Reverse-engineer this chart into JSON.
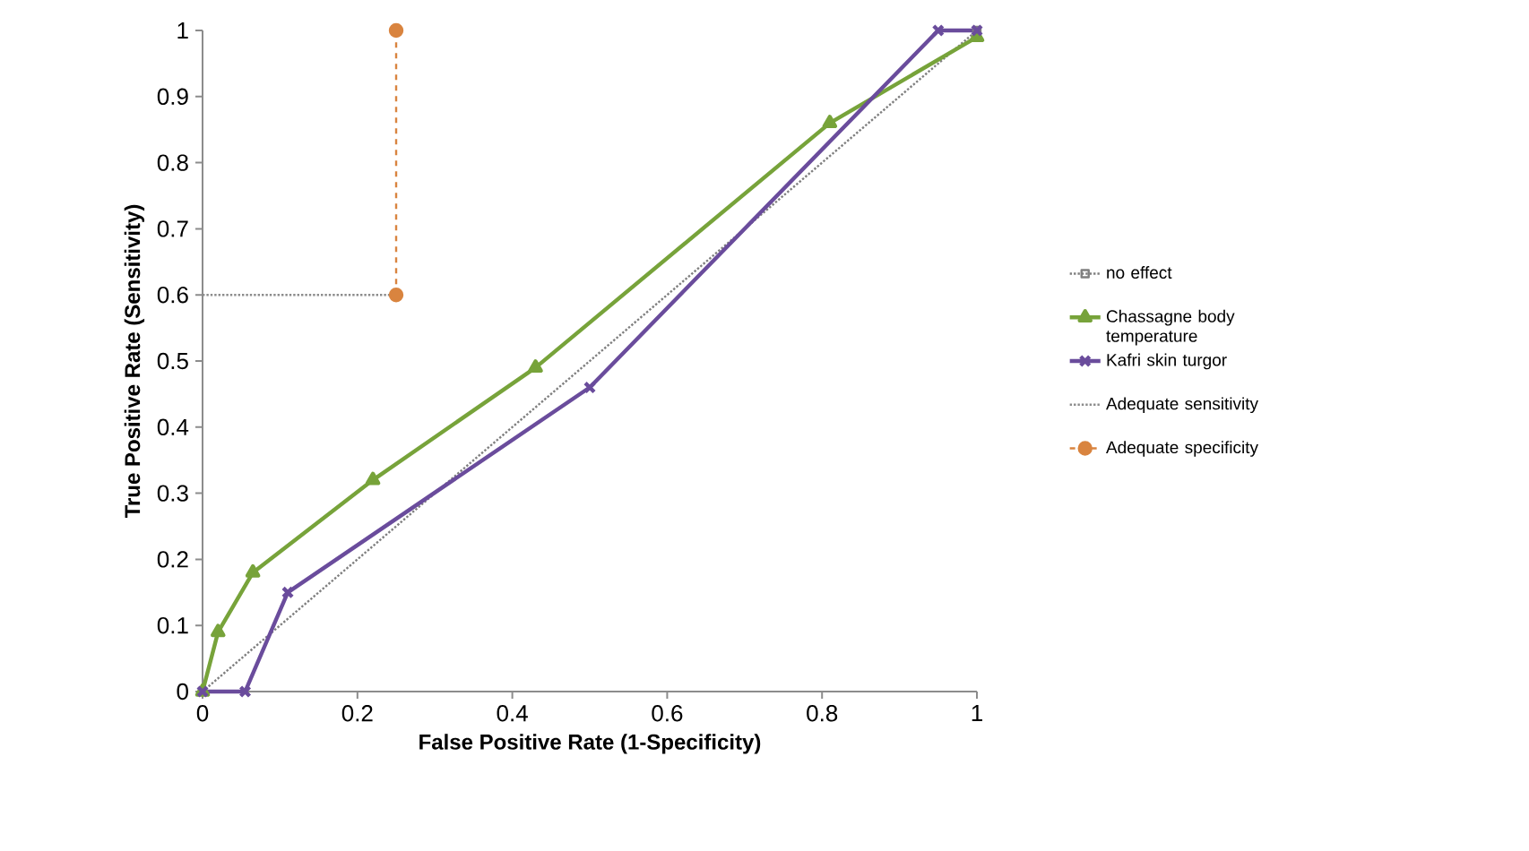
{
  "chart_data": {
    "type": "line",
    "xlabel": "False Positive Rate (1-Specificity)",
    "ylabel": "True Positive Rate (Sensitivity)",
    "xlim": [
      0,
      1
    ],
    "ylim": [
      0,
      1
    ],
    "xticks": [
      0,
      0.2,
      0.4,
      0.6,
      0.8,
      1
    ],
    "yticks": [
      0,
      0.1,
      0.2,
      0.3,
      0.4,
      0.5,
      0.6,
      0.7,
      0.8,
      0.9,
      1
    ],
    "grid": false,
    "legend": "right",
    "series": [
      {
        "name": "no effect",
        "color": "#7f7f7f",
        "line_style": "dotted",
        "marker": "square",
        "x": [
          0,
          1
        ],
        "values": [
          0,
          1
        ]
      },
      {
        "name": "Chassagne body temperature",
        "color": "#77a33a",
        "line_style": "solid",
        "marker": "triangle",
        "x": [
          0,
          0.02,
          0.065,
          0.22,
          0.43,
          0.81,
          1
        ],
        "values": [
          0,
          0.09,
          0.18,
          0.32,
          0.49,
          0.86,
          0.99
        ]
      },
      {
        "name": "Kafri skin turgor",
        "color": "#6a4c9c",
        "line_style": "solid",
        "marker": "cross",
        "x": [
          0,
          0.055,
          0.11,
          0.5,
          0.95,
          1
        ],
        "values": [
          0,
          0,
          0.15,
          0.46,
          1,
          1
        ]
      },
      {
        "name": "Adequate sensitivity",
        "color": "#8c8c8c",
        "line_style": "dotted",
        "marker": "none",
        "x": [
          0,
          0.25
        ],
        "values": [
          0.6,
          0.6
        ]
      },
      {
        "name": "Adequate specificity",
        "color": "#d9843f",
        "line_style": "dashed",
        "marker": "circle",
        "x": [
          0.25,
          0.25
        ],
        "values": [
          0.6,
          1
        ]
      }
    ]
  }
}
